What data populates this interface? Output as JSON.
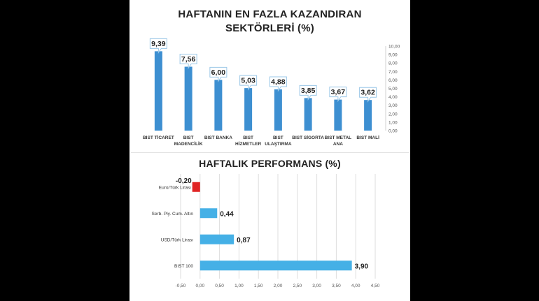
{
  "chart_data": [
    {
      "type": "bar",
      "title_line1": "HAFTANIN EN FAZLA KAZANDIRAN",
      "title_line2": "SEKTÖRLERİ (%)",
      "categories": [
        [
          "BIST TİCARET"
        ],
        [
          "BIST",
          "MADENCİLİK"
        ],
        [
          "BIST BANKA"
        ],
        [
          "BIST",
          "HİZMETLER"
        ],
        [
          "BIST",
          "ULAŞTIRMA"
        ],
        [
          "BIST SİGORTA"
        ],
        [
          "BIST METAL",
          "ANA"
        ],
        [
          "BIST MALİ"
        ]
      ],
      "values": [
        9.39,
        7.56,
        6.0,
        5.03,
        4.88,
        3.85,
        3.67,
        3.62
      ],
      "value_labels": [
        "9,39",
        "7,56",
        "6,00",
        "5,03",
        "4,88",
        "3,85",
        "3,67",
        "3,62"
      ],
      "ylim": [
        0,
        10
      ],
      "y_ticks": [
        "0,00",
        "1,00",
        "2,00",
        "3,00",
        "4,00",
        "5,00",
        "6,00",
        "7,00",
        "8,00",
        "9,00",
        "10,00"
      ],
      "y_axis_side": "right",
      "bar_color": "#3d8fd1"
    },
    {
      "type": "bar",
      "orientation": "horizontal",
      "title": "HAFTALIK PERFORMANS (%)",
      "categories": [
        "Euro/Türk Lirası",
        "Serb. Piy. Cum. Altın",
        "USD/Türk Lirası",
        "BIST 100"
      ],
      "values": [
        -0.2,
        0.44,
        0.87,
        3.9
      ],
      "value_labels": [
        "-0,20",
        "0,44",
        "0,87",
        "3,90"
      ],
      "xlim": [
        -0.5,
        4.5
      ],
      "x_ticks": [
        "-0,50",
        "0,00",
        "0,50",
        "1,00",
        "1,50",
        "2,00",
        "2,50",
        "3,00",
        "3,50",
        "4,00",
        "4,50"
      ],
      "positive_color": "#45b0e6",
      "negative_color": "#e02424",
      "grid": true
    }
  ]
}
